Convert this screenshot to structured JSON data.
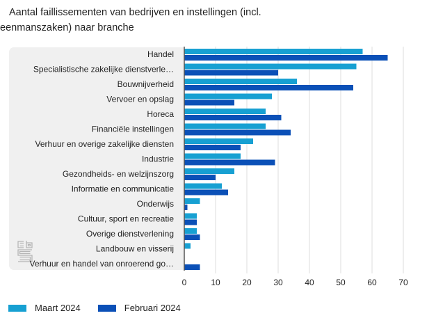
{
  "chart_data": {
    "type": "bar",
    "orientation": "horizontal",
    "title": "Aantal faillissementen van bedrijven en instellingen (incl. eenmanszaken) naar branche",
    "title_lines": [
      "Aantal faillissementen van bedrijven en instellingen (incl.",
      "eenmanszaken) naar branche"
    ],
    "categories": [
      "Handel",
      "Specialistische zakelijke dienstverle…",
      "Bouwnijverheid",
      "Vervoer en opslag",
      "Horeca",
      "Financiële instellingen",
      "Verhuur en overige zakelijke diensten",
      "Industrie",
      "Gezondheids- en welzijnszorg",
      "Informatie en communicatie",
      "Onderwijs",
      "Cultuur, sport en recreatie",
      "Overige dienstverlening",
      "Landbouw en visserij",
      "Verhuur en handel van onroerend go…"
    ],
    "series": [
      {
        "name": "Maart 2024",
        "color": "#17a0d2",
        "values": [
          57,
          55,
          36,
          28,
          26,
          26,
          22,
          18,
          16,
          12,
          5,
          4,
          4,
          2,
          0
        ]
      },
      {
        "name": "Februari 2024",
        "color": "#0b50b7",
        "values": [
          65,
          30,
          54,
          16,
          31,
          34,
          18,
          29,
          10,
          14,
          1,
          4,
          5,
          0,
          5
        ]
      }
    ],
    "xlabel": "",
    "ylabel": "",
    "xlim": [
      0,
      70
    ],
    "xticks": [
      "0",
      "10",
      "20",
      "30",
      "40",
      "50",
      "60",
      "70"
    ],
    "grid": true,
    "legend_position": "bottom-left"
  },
  "logo": {
    "name": "cbs-logo",
    "text": "cbs"
  }
}
